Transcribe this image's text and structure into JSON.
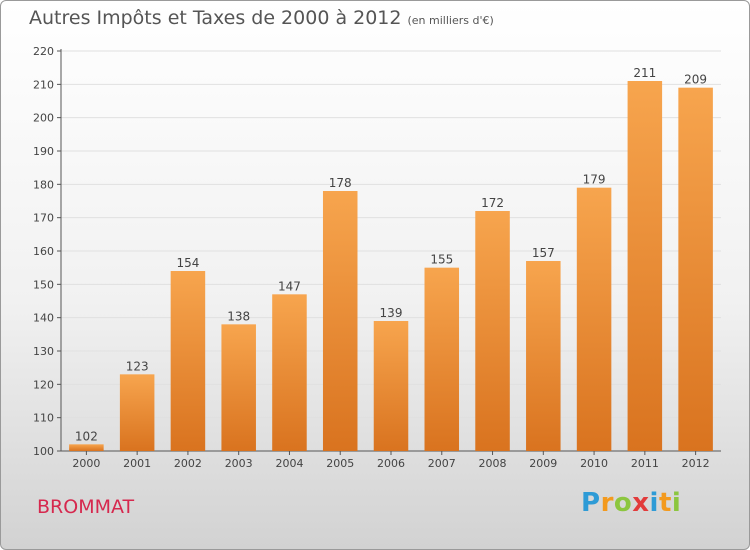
{
  "header": {
    "title": "Autres Impôts et Taxes de 2000 à 2012",
    "subtitle": "(en milliers d'€)"
  },
  "footer": {
    "commune": "BROMMAT",
    "logo_text": "Proxiti",
    "logo_letters": [
      {
        "char": "P",
        "color": "#2e9bd6"
      },
      {
        "char": "r",
        "color": "#f39a1e"
      },
      {
        "char": "o",
        "color": "#8cc63f"
      },
      {
        "char": "x",
        "color": "#e23b3b"
      },
      {
        "char": "i",
        "color": "#2e9bd6"
      },
      {
        "char": "t",
        "color": "#f39a1e"
      },
      {
        "char": "i",
        "color": "#8cc63f"
      }
    ]
  },
  "colors": {
    "bar_light": "#f7a54e",
    "bar_dark": "#d9731f",
    "commune": "#d6284e",
    "axis": "#555555",
    "grid": "#e0e0e0"
  },
  "chart_data": {
    "type": "bar",
    "title": "Autres Impôts et Taxes de 2000 à 2012",
    "subtitle": "(en milliers d'€)",
    "categories": [
      "2000",
      "2001",
      "2002",
      "2003",
      "2004",
      "2005",
      "2006",
      "2007",
      "2008",
      "2009",
      "2010",
      "2011",
      "2012"
    ],
    "values": [
      102,
      123,
      154,
      138,
      147,
      178,
      139,
      155,
      172,
      157,
      179,
      211,
      209
    ],
    "ylim": [
      100,
      220
    ],
    "yticks": [
      100,
      110,
      120,
      130,
      140,
      150,
      160,
      170,
      180,
      190,
      200,
      210,
      220
    ],
    "grid": true,
    "data_labels": true
  }
}
